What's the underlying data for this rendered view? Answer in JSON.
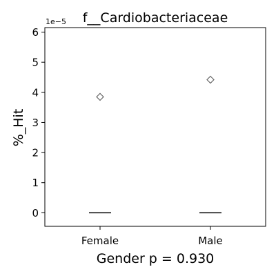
{
  "chart_data": {
    "type": "box",
    "title": "f__Cardiobacteriaceae",
    "offset_label": "1e−5",
    "xlabel": "Gender p = 0.930",
    "ylabel": "%_Hit",
    "ylim": [
      -0.45,
      6.15
    ],
    "y_ticks": [
      0,
      1,
      2,
      3,
      4,
      5,
      6
    ],
    "y_tick_labels": [
      "0",
      "1",
      "2",
      "3",
      "4",
      "5",
      "6"
    ],
    "categories": [
      "Female",
      "Male"
    ],
    "medians": [
      0,
      0
    ],
    "outliers": [
      [
        3.85
      ],
      [
        4.42
      ]
    ],
    "grid": false,
    "colors": {
      "axes": "#000000",
      "median": "#000000",
      "outlier": "#666666"
    }
  }
}
